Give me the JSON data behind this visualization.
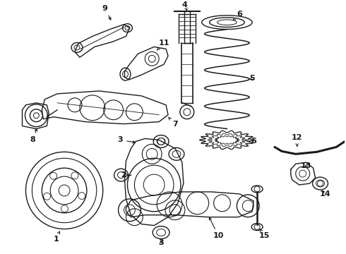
{
  "bg_color": "#ffffff",
  "line_color": "#1a1a1a",
  "figsize": [
    4.9,
    3.6
  ],
  "dpi": 100,
  "lw": 1.0
}
